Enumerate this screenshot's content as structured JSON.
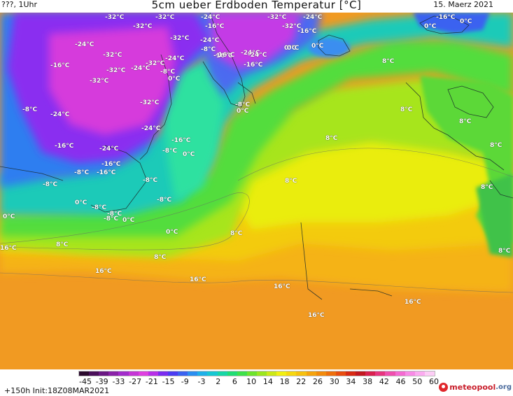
{
  "header": {
    "left": "???, 1Uhr",
    "title": "5cm ueber Erdboden Temperatur [°C]",
    "date": "15. Maerz 2021"
  },
  "map_labels": [
    {
      "t": "-32°C"
    },
    {
      "t": "-32°C"
    },
    {
      "t": "-24°C"
    },
    {
      "t": "-32°C"
    },
    {
      "t": "-24°C"
    },
    {
      "t": "-16°C"
    },
    {
      "t": "-32°C"
    },
    {
      "t": "-16°C"
    },
    {
      "t": "-32°C"
    },
    {
      "t": "0°C"
    },
    {
      "t": "0°C"
    },
    {
      "t": "-16°C"
    },
    {
      "t": "-24°C"
    },
    {
      "t": "-24°C"
    },
    {
      "t": "-32°C"
    },
    {
      "t": "-24°C"
    },
    {
      "t": "-16°C"
    },
    {
      "t": "-8°C"
    },
    {
      "t": "-32°C"
    },
    {
      "t": "-24°C"
    },
    {
      "t": "-24°C"
    },
    {
      "t": "-16°C"
    },
    {
      "t": "-16°C"
    },
    {
      "t": "0°C"
    },
    {
      "t": "0°C"
    },
    {
      "t": "0°C"
    },
    {
      "t": "-16°C"
    },
    {
      "t": "-32°C"
    },
    {
      "t": "-24°C"
    },
    {
      "t": "-32°C"
    },
    {
      "t": "-8°C"
    },
    {
      "t": "0°C"
    },
    {
      "t": "-32°C"
    },
    {
      "t": "8°C"
    },
    {
      "t": "-8°C"
    },
    {
      "t": "-24°C"
    },
    {
      "t": "-32°C"
    },
    {
      "t": "0°C"
    },
    {
      "t": "8°C"
    },
    {
      "t": "-8°C"
    },
    {
      "t": "8°C"
    },
    {
      "t": "-24°C"
    },
    {
      "t": "-16°C"
    },
    {
      "t": "8°C"
    },
    {
      "t": "-16°C"
    },
    {
      "t": "-24°C"
    },
    {
      "t": "-8°C"
    },
    {
      "t": "0°C"
    },
    {
      "t": "8°C"
    },
    {
      "t": "-16°C"
    },
    {
      "t": "-8°C"
    },
    {
      "t": "-16°C"
    },
    {
      "t": "-8°C"
    },
    {
      "t": "8°C"
    },
    {
      "t": "-8°C"
    },
    {
      "t": "-8°C"
    },
    {
      "t": "8°C"
    },
    {
      "t": "0°C"
    },
    {
      "t": "-8°C"
    },
    {
      "t": "-8°C"
    },
    {
      "t": "0°C"
    },
    {
      "t": "-8°C"
    },
    {
      "t": "0°C"
    },
    {
      "t": "0°C"
    },
    {
      "t": "8°C"
    },
    {
      "t": "16°C"
    },
    {
      "t": "8°C"
    },
    {
      "t": "8°C"
    },
    {
      "t": "8°C"
    },
    {
      "t": "16°C"
    },
    {
      "t": "16°C"
    },
    {
      "t": "16°C"
    },
    {
      "t": "16°C"
    },
    {
      "t": "16°C"
    }
  ],
  "colorbar": {
    "ticks": [
      "-45",
      "-39",
      "-33",
      "-27",
      "-21",
      "-15",
      "-9",
      "-3",
      "2",
      "6",
      "10",
      "14",
      "18",
      "22",
      "26",
      "30",
      "34",
      "38",
      "42",
      "46",
      "50",
      "60"
    ],
    "colors": [
      "#2b0a2e",
      "#4a0f5a",
      "#6a1883",
      "#8a22a8",
      "#a22ccb",
      "#c535d6",
      "#de3fe0",
      "#b72fe8",
      "#7a2cf0",
      "#4c3cf2",
      "#3a62f0",
      "#2b8ef0",
      "#1fb0e8",
      "#16c7d2",
      "#17d6a6",
      "#20dd74",
      "#3ee14a",
      "#6ee32c",
      "#9be61e",
      "#cbe817",
      "#f1ef12",
      "#f6d70f",
      "#f6c00e",
      "#f5a30d",
      "#f28a0c",
      "#ee6f0c",
      "#e84d10",
      "#d82a14",
      "#c21820",
      "#d9214f",
      "#e7357f",
      "#ef4fae",
      "#f46ad1",
      "#f88ae6",
      "#fbabf0",
      "#fdcdf6"
    ]
  },
  "footer": {
    "run_info": "+150h  Init:18Z08MAR2021",
    "logo_main": "meteopool",
    "logo_tld": ".org"
  }
}
